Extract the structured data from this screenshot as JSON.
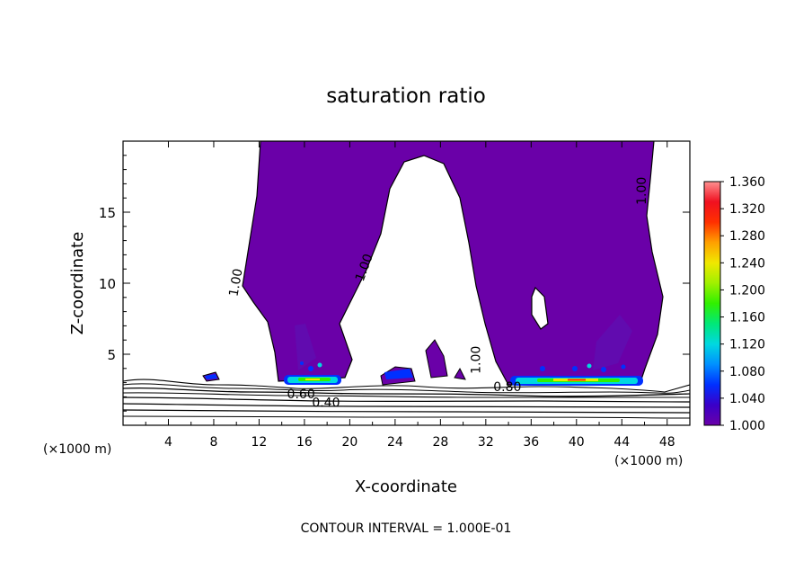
{
  "chart_data": {
    "type": "heatmap",
    "title": "saturation ratio",
    "xlabel": "X-coordinate",
    "ylabel": "Z-coordinate",
    "x_unit_left": "(×1000 m)",
    "x_unit_right": "(×1000 m)",
    "xlim": [
      0,
      50
    ],
    "ylim": [
      0,
      20
    ],
    "x_ticks": [
      4,
      8,
      12,
      16,
      20,
      24,
      28,
      32,
      36,
      40,
      44,
      48
    ],
    "y_ticks": [
      5,
      10,
      15
    ],
    "footer": "CONTOUR INTERVAL = 1.000E-01",
    "colorbar": {
      "min": 1.0,
      "max": 1.36,
      "labels": [
        "1.360",
        "1.320",
        "1.280",
        "1.240",
        "1.200",
        "1.160",
        "1.120",
        "1.080",
        "1.040",
        "1.000"
      ],
      "label_values": [
        1.36,
        1.32,
        1.28,
        1.24,
        1.2,
        1.16,
        1.12,
        1.08,
        1.04,
        1.0
      ],
      "colors": [
        "#6a00a8",
        "#3a00c8",
        "#0030ff",
        "#0090ff",
        "#00d8e0",
        "#00e878",
        "#30f000",
        "#a0f000",
        "#f0e800",
        "#ffa000",
        "#ff3000",
        "#f01020",
        "#ff9090"
      ]
    },
    "contour_labels": [
      {
        "text": "1.00",
        "x": 10.3,
        "z": 10.0,
        "rotate": -80
      },
      {
        "text": "1.00",
        "x": 21.6,
        "z": 11.0,
        "rotate": -70
      },
      {
        "text": "1.00",
        "x": 31.5,
        "z": 4.6,
        "rotate": -90
      },
      {
        "text": "1.00",
        "x": 46.1,
        "z": 16.5,
        "rotate": -90
      },
      {
        "text": "0.80",
        "x": 33.9,
        "z": 2.4,
        "rotate": 0
      },
      {
        "text": "0.60",
        "x": 15.7,
        "z": 1.9,
        "rotate": 0
      },
      {
        "text": "0.40",
        "x": 17.9,
        "z": 1.3,
        "rotate": 0
      }
    ],
    "colors": {
      "supersaturated_fill": "#6a00a8",
      "contour_line": "#000000"
    }
  }
}
